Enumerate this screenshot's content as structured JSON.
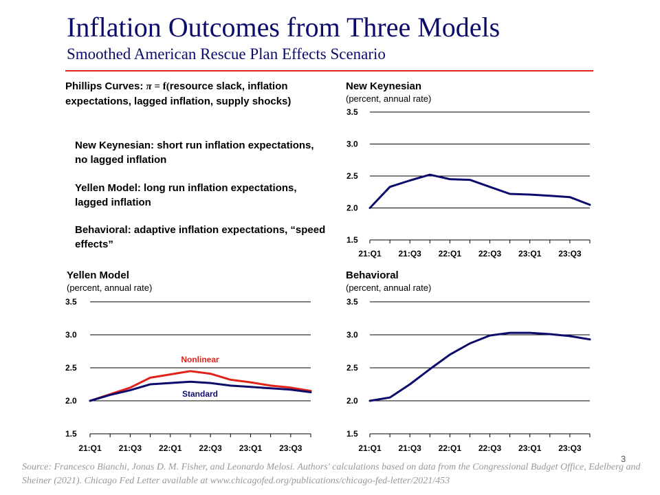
{
  "header": {
    "title": "Inflation Outcomes from Three Models",
    "subtitle": "Smoothed American Rescue Plan Effects Scenario"
  },
  "phillips": {
    "lead": "Phillips Curves: ",
    "pi": "π",
    "eq": " = f(",
    "rest": "resource slack, inflation expectations, lagged inflation, supply shocks)"
  },
  "models": {
    "nk": "New Keynesian: short run inflation expectations, no lagged inflation",
    "yellen": "Yellen Model: long run inflation expectations, lagged inflation",
    "behavioral": "Behavioral: adaptive inflation expectations, “speed effects”"
  },
  "page_number": "3",
  "source": "Source: Francesco Bianchi, Jonas D. M. Fisher, and Leonardo Melosi. Authors' calculations based on data from the Congressional Budget Office, Edelberg and Sheiner (2021). Chicago Fed Letter available at www.chicagofed.org/publications/chicago-fed-letter/2021/453",
  "colors": {
    "navy": "#0b0b6b",
    "red": "#e0221b"
  },
  "chart_data": [
    {
      "type": "line",
      "title": "New Keynesian",
      "ylabel": "(percent, annual rate)",
      "ylim": [
        1.5,
        3.5
      ],
      "yticks": [
        "3.5",
        "3.0",
        "2.5",
        "2.0",
        "1.5"
      ],
      "ytick_values": [
        3.5,
        3.0,
        2.5,
        2.0,
        1.5
      ],
      "xtick_labels": [
        "21:Q1",
        "21:Q3",
        "22:Q1",
        "22:Q3",
        "23:Q1",
        "23:Q3"
      ],
      "series": [
        {
          "name": "New Keynesian",
          "color": "#0b0b6b",
          "values": [
            2.0,
            2.33,
            2.43,
            2.52,
            2.45,
            2.44,
            2.33,
            2.22,
            2.21,
            2.19,
            2.17,
            2.05
          ]
        }
      ]
    },
    {
      "type": "line",
      "title": "Yellen Model",
      "ylabel": "(percent, annual rate)",
      "ylim": [
        1.5,
        3.5
      ],
      "yticks": [
        "3.5",
        "3.0",
        "2.5",
        "2.0",
        "1.5"
      ],
      "ytick_values": [
        3.5,
        3.0,
        2.5,
        2.0,
        1.5
      ],
      "xtick_labels": [
        "21:Q1",
        "21:Q3",
        "22:Q1",
        "22:Q3",
        "23:Q1",
        "23:Q3"
      ],
      "series": [
        {
          "name": "Nonlinear",
          "color": "#e0221b",
          "values": [
            2.0,
            2.1,
            2.2,
            2.35,
            2.4,
            2.45,
            2.41,
            2.32,
            2.28,
            2.23,
            2.2,
            2.15
          ]
        },
        {
          "name": "Standard",
          "color": "#0b0b6b",
          "values": [
            2.0,
            2.09,
            2.16,
            2.25,
            2.27,
            2.29,
            2.27,
            2.23,
            2.21,
            2.19,
            2.17,
            2.13
          ]
        }
      ]
    },
    {
      "type": "line",
      "title": "Behavioral",
      "ylabel": "(percent, annual rate)",
      "ylim": [
        1.5,
        3.5
      ],
      "yticks": [
        "3.5",
        "3.0",
        "2.5",
        "2.0",
        "1.5"
      ],
      "ytick_values": [
        3.5,
        3.0,
        2.5,
        2.0,
        1.5
      ],
      "xtick_labels": [
        "21:Q1",
        "21:Q3",
        "22:Q1",
        "22:Q3",
        "23:Q1",
        "23:Q3"
      ],
      "series": [
        {
          "name": "Behavioral",
          "color": "#0b0b6b",
          "values": [
            2.0,
            2.05,
            2.25,
            2.48,
            2.7,
            2.87,
            2.99,
            3.03,
            3.03,
            3.01,
            2.98,
            2.93
          ]
        }
      ]
    }
  ]
}
